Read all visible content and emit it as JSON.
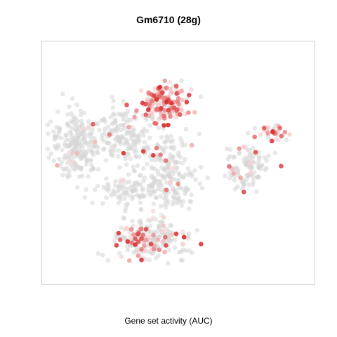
{
  "chart_data": {
    "type": "scatter",
    "title": "Gm6710 (28g)",
    "xlabel": "Gene set activity (AUC)",
    "ylabel": "",
    "grid": false,
    "legend": "none",
    "colors": {
      "background_point": "#d6d6d6",
      "low": "#fbe0e0",
      "high": "#d62728"
    },
    "clusters": [
      {
        "center": [
          45,
          75
        ],
        "spread": [
          4.8,
          3.8
        ],
        "n": 150,
        "act": 0.85
      },
      {
        "center": [
          12,
          58
        ],
        "spread": [
          5.0,
          7.5
        ],
        "n": 220,
        "act": 0.02
      },
      {
        "center": [
          29,
          62
        ],
        "spread": [
          4.5,
          6.5
        ],
        "n": 140,
        "act": 0.03
      },
      {
        "center": [
          45,
          51
        ],
        "spread": [
          5.0,
          6.0
        ],
        "n": 130,
        "act": 0.06
      },
      {
        "center": [
          31,
          38
        ],
        "spread": [
          7.0,
          3.0
        ],
        "n": 90,
        "act": 0.04
      },
      {
        "center": [
          39,
          18
        ],
        "spread": [
          7.0,
          4.0
        ],
        "n": 220,
        "act": 0.3
      },
      {
        "center": [
          76,
          48
        ],
        "spread": [
          4.0,
          5.0
        ],
        "n": 110,
        "act": 0.12
      },
      {
        "center": [
          86,
          62
        ],
        "spread": [
          3.5,
          1.8
        ],
        "n": 30,
        "act": 0.55
      },
      {
        "center": [
          49,
          38
        ],
        "spread": [
          5.0,
          4.0
        ],
        "n": 70,
        "act": 0.06
      }
    ]
  }
}
